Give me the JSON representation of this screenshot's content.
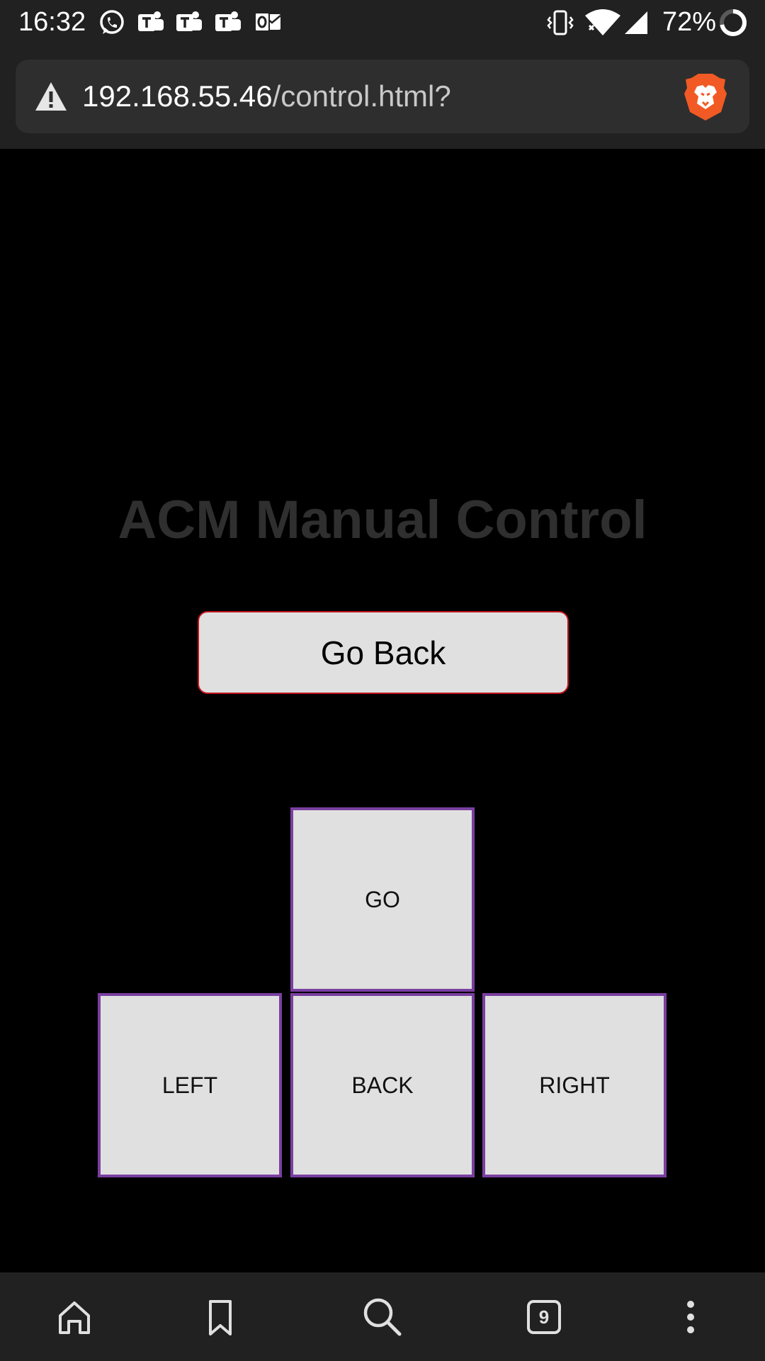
{
  "status_bar": {
    "time": "16:32",
    "notification_icons": [
      "whatsapp-icon",
      "teams-icon",
      "teams-icon",
      "teams-icon",
      "outlook-icon"
    ],
    "system_icons": [
      "vibrate-icon",
      "wifi-icon",
      "cell-signal-icon"
    ],
    "battery_percent": "72%"
  },
  "browser": {
    "url_host": "192.168.55.46",
    "url_path": "/control.html?",
    "security_icon": "warning-icon",
    "shield_icon": "brave-lion-icon",
    "tab_count": "9",
    "toolbar_icons": [
      "home-icon",
      "bookmark-icon",
      "search-icon",
      "tab-switcher-icon",
      "more-vert-icon"
    ]
  },
  "page": {
    "title": "ACM Manual Control",
    "go_back_label": "Go Back",
    "controls": {
      "go": "GO",
      "left": "LEFT",
      "back": "BACK",
      "right": "RIGHT"
    }
  },
  "colors": {
    "background": "#000000",
    "bars": "#212121",
    "button_fill": "#e0e0e0",
    "control_border": "#7a3fa0",
    "go_back_border": "#c0141c",
    "title_text": "#2f2f2f"
  }
}
